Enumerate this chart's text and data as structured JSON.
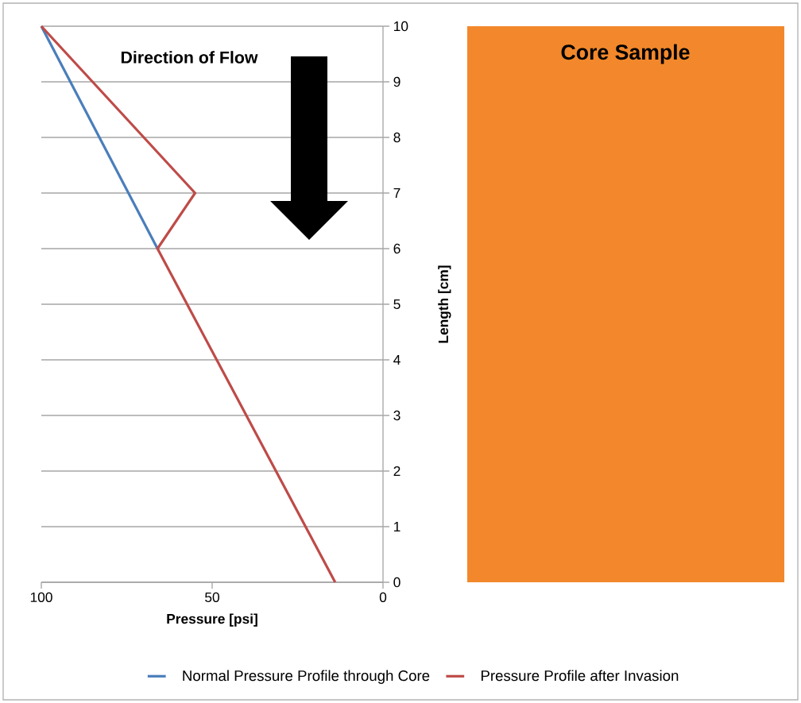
{
  "chart_data": {
    "type": "line",
    "xlabel": "Pressure [psi]",
    "ylabel": "Length [cm]",
    "annotations": [
      "Direction of Flow",
      "Core Sample"
    ],
    "series": [
      {
        "name": "Normal Pressure Profile through Core",
        "color": "#4a7ebb",
        "x": [
          100,
          66
        ],
        "values": [
          10,
          6
        ]
      },
      {
        "name": "Pressure Profile after Invasion",
        "color": "#be4b48",
        "x": [
          100,
          55,
          66,
          14
        ],
        "values": [
          10,
          7,
          6,
          0
        ]
      }
    ],
    "xlim": [
      100,
      0
    ],
    "xticks": [
      100,
      50,
      0
    ],
    "ylim": [
      0,
      10
    ],
    "yticks": [
      0,
      1,
      2,
      3,
      4,
      5,
      6,
      7,
      8,
      9,
      10
    ],
    "grid": "y",
    "legend": "bottom",
    "marker": "none",
    "line_style": "solid"
  }
}
